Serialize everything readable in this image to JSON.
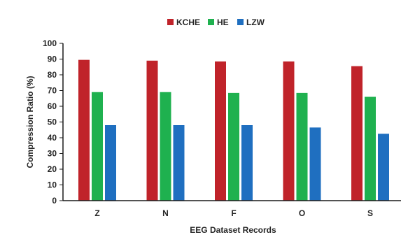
{
  "chart_data": {
    "type": "bar",
    "title": "",
    "xlabel": "EEG Dataset Records",
    "ylabel": "Compression Ratio (%)",
    "categories": [
      "Z",
      "N",
      "F",
      "O",
      "S"
    ],
    "series": [
      {
        "name": "KCHE",
        "color": "#c0232a",
        "values": [
          89.5,
          89.0,
          88.5,
          88.5,
          85.5
        ]
      },
      {
        "name": "HE",
        "color": "#1fb14f",
        "values": [
          69.0,
          69.0,
          68.5,
          68.5,
          66.0
        ]
      },
      {
        "name": "LZW",
        "color": "#1f6fc0",
        "values": [
          48.0,
          48.0,
          48.0,
          46.5,
          42.5
        ]
      }
    ],
    "ylim": [
      0,
      100
    ],
    "yticks": [
      0,
      10,
      20,
      30,
      40,
      50,
      60,
      70,
      80,
      90,
      100
    ],
    "legend": "top-center",
    "grid": false,
    "axis_color": "#1a1a1a"
  }
}
